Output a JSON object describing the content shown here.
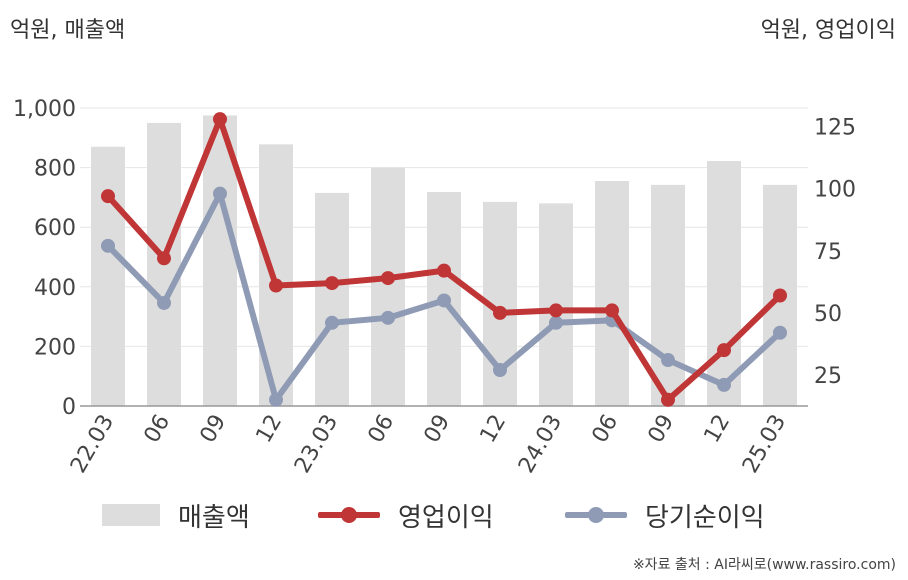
{
  "unit_left": "억원, 매출액",
  "unit_right": "억원, 영업이익",
  "source": "※자료 출처 : AI라씨로(www.rassiro.com)",
  "legend": {
    "revenue": "매출액",
    "operating_profit": "영업이익",
    "net_income": "당기순이익"
  },
  "colors": {
    "revenue": "#dddddd",
    "operating_profit": "#c03536",
    "net_income": "#8f9bb5"
  },
  "chart_data": {
    "type": "bar",
    "categories": [
      "22.03",
      "06",
      "09",
      "12",
      "23.03",
      "06",
      "09",
      "12",
      "24.03",
      "06",
      "09",
      "12",
      "25.03"
    ],
    "series": [
      {
        "name": "매출액",
        "axis": "left",
        "type": "bar",
        "values": [
          870,
          950,
          975,
          878,
          715,
          800,
          718,
          685,
          680,
          755,
          742,
          822,
          742
        ]
      },
      {
        "name": "영업이익",
        "axis": "right",
        "type": "line",
        "values": [
          97,
          72,
          128,
          61,
          62,
          64,
          67,
          50,
          51,
          51,
          15,
          35,
          57
        ]
      },
      {
        "name": "당기순이익",
        "axis": "right",
        "type": "line",
        "values": [
          77,
          54,
          98,
          15,
          46,
          48,
          55,
          27,
          46,
          47,
          31,
          21,
          42
        ]
      }
    ],
    "y_left": {
      "ylim": [
        0,
        1000
      ],
      "ticks": [
        "0",
        "200",
        "400",
        "600",
        "800",
        "1,000"
      ]
    },
    "y_right": {
      "ylim": [
        12.5,
        132.5
      ],
      "ticks": [
        "25",
        "50",
        "75",
        "100",
        "125"
      ]
    },
    "grid": true,
    "legend_position": "bottom"
  }
}
